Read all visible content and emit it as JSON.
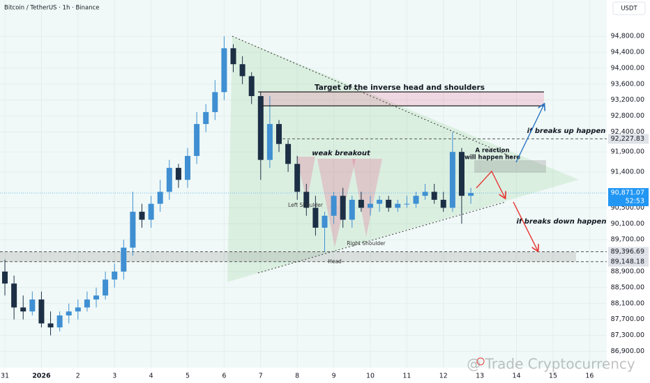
{
  "header": {
    "title": "Bitcoin / TetherUS · 1h · Binance",
    "currency": "USDT"
  },
  "chart_data": {
    "type": "candlestick",
    "x": [
      0,
      0.25,
      0.5,
      0.75,
      1,
      1.25,
      1.5,
      1.75,
      2,
      2.25,
      2.5,
      2.75,
      3,
      3.25,
      3.5,
      3.75,
      4,
      4.25,
      4.5,
      4.75,
      5,
      5.25,
      5.5,
      5.75,
      6,
      6.25,
      6.5,
      6.75,
      7,
      7.25,
      7.5,
      7.75,
      8,
      8.25,
      8.5,
      8.75,
      9,
      9.25,
      9.5,
      9.75,
      10,
      10.25,
      10.5,
      10.75,
      11,
      11.25,
      11.5,
      11.75,
      12,
      12.25,
      12.5,
      12.75
    ],
    "open": [
      88900,
      88600,
      88000,
      87900,
      88200,
      87600,
      87500,
      87800,
      87900,
      88000,
      88200,
      88300,
      88700,
      88900,
      89500,
      90400,
      90200,
      90600,
      90900,
      91500,
      91200,
      91800,
      92600,
      92900,
      93400,
      94500,
      94100,
      93800,
      93300,
      91700,
      92600,
      92100,
      91600,
      90900,
      90500,
      90000,
      90300,
      90800,
      90200,
      90700,
      90500,
      90600,
      90700,
      90500,
      90600,
      90600,
      90800,
      90900,
      90700,
      90500,
      91900,
      90800
    ],
    "high": [
      89200,
      88800,
      88300,
      88400,
      88400,
      87900,
      87900,
      88100,
      88200,
      88400,
      88500,
      88900,
      89100,
      89700,
      90900,
      90600,
      90800,
      91200,
      91700,
      91600,
      92000,
      92900,
      93100,
      93700,
      94800,
      94600,
      94300,
      93900,
      93400,
      93300,
      92700,
      92200,
      91800,
      91100,
      90800,
      90400,
      90900,
      91000,
      90800,
      90900,
      90800,
      90800,
      90800,
      90700,
      90800,
      90900,
      91100,
      91100,
      90900,
      92400,
      92000,
      91000
    ],
    "low": [
      88300,
      87700,
      87700,
      87800,
      87500,
      87300,
      87400,
      87600,
      87700,
      87900,
      88000,
      88200,
      88500,
      88700,
      89300,
      90000,
      90000,
      90400,
      90700,
      91000,
      91000,
      91600,
      92400,
      92700,
      93200,
      93900,
      93600,
      93100,
      91200,
      91500,
      91900,
      91400,
      90700,
      90300,
      89800,
      89400,
      90100,
      90000,
      90000,
      90400,
      90300,
      90400,
      90400,
      90400,
      90500,
      90500,
      90700,
      90600,
      90400,
      90400,
      90100,
      90600
    ],
    "close": [
      88600,
      88000,
      87900,
      88200,
      87600,
      87500,
      87800,
      87900,
      88000,
      88200,
      88300,
      88700,
      88900,
      89500,
      90400,
      90200,
      90600,
      90900,
      91500,
      91200,
      91800,
      92600,
      92900,
      93400,
      94500,
      94100,
      93800,
      93300,
      91700,
      92600,
      92100,
      91600,
      90900,
      90500,
      90000,
      90300,
      90800,
      90200,
      90700,
      90500,
      90600,
      90700,
      90500,
      90600,
      90600,
      90800,
      90900,
      90700,
      90500,
      91900,
      90800,
      90871.07
    ],
    "up_color": "#3f8fd2",
    "down_color": "#1c2f45",
    "xlim": [
      -0.134,
      16.47
    ],
    "ylim": [
      86490,
      95710
    ],
    "xticks": [
      {
        "value": 0,
        "label": "31"
      },
      {
        "value": 1,
        "label": "2026"
      },
      2,
      3,
      4,
      5,
      6,
      7,
      8,
      9,
      10,
      11,
      12,
      13,
      14,
      15,
      16
    ],
    "yticks": [
      {
        "value": 94800,
        "label": "94,800.00"
      },
      {
        "value": 94400,
        "label": "94,400.00"
      },
      {
        "value": 94000,
        "label": "94,000.00"
      },
      {
        "value": 93600,
        "label": "93,600.00"
      },
      {
        "value": 93200,
        "label": "93,200.00"
      },
      {
        "value": 92800,
        "label": "92,800.00"
      },
      {
        "value": 92400,
        "label": "92,400.00"
      },
      {
        "value": 91900,
        "label": "91,900.00"
      },
      {
        "value": 91400,
        "label": "91,400.00"
      },
      {
        "value": 90500,
        "label": "90,500.00"
      },
      {
        "value": 90100,
        "label": "90,100.00"
      },
      {
        "value": 89700,
        "label": "89,700.00"
      },
      {
        "value": 88900,
        "label": "88,900.00"
      },
      {
        "value": 88500,
        "label": "88,500.00"
      },
      {
        "value": 88100,
        "label": "88,100.00"
      },
      {
        "value": 87700,
        "label": "87,700.00"
      },
      {
        "value": 87300,
        "label": "87,300.00"
      },
      {
        "value": 86900,
        "label": "86,900.00"
      }
    ],
    "price_levels": [
      {
        "value": 92227.83,
        "label": "92,227.83"
      },
      {
        "value": 89396.69,
        "label": "89,396.69"
      },
      {
        "value": 89148.18,
        "label": "89,148.18"
      }
    ],
    "current_price": {
      "value": 90871.07,
      "label": "90,871.07",
      "countdown": "52:53"
    }
  },
  "annotations": {
    "target": "Target of the inverse head and shoulders",
    "weak_breakout": "weak breakout",
    "left_shoulder": "Left Shoulder",
    "head": "Head",
    "right_shoulder": "Right Shoulder",
    "reaction": [
      "A reaction",
      "will happen here"
    ],
    "breaks_up": "if breaks up happen",
    "breaks_down": "if breaks down happen"
  },
  "watermark": "@ Trade Cryptocurrency"
}
